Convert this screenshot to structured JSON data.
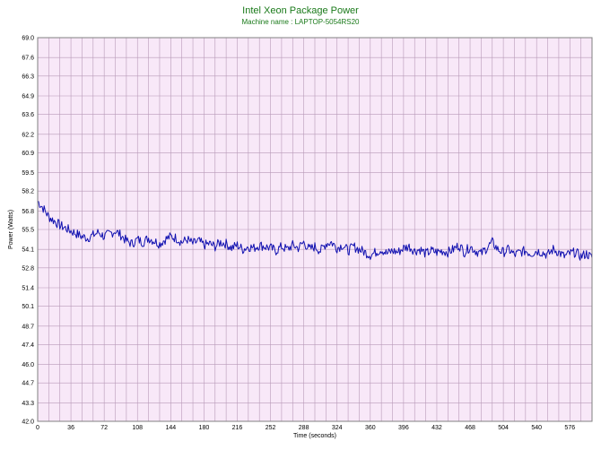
{
  "chart_data": {
    "type": "line",
    "title": "Intel Xeon Package Power",
    "subtitle": "Machine name : LAPTOP-5054RS20",
    "xlabel": "Time (seconds)",
    "ylabel": "Power (Watts)",
    "xlim": [
      0,
      600
    ],
    "ylim": [
      42.0,
      69.0
    ],
    "x_ticks": [
      0,
      36,
      72,
      108,
      144,
      180,
      216,
      252,
      288,
      324,
      360,
      396,
      432,
      468,
      504,
      540,
      576
    ],
    "y_ticks": [
      "42.0",
      "43.3",
      "44.7",
      "46.0",
      "47.4",
      "48.7",
      "50.1",
      "51.4",
      "52.8",
      "54.1",
      "55.5",
      "56.8",
      "58.2",
      "59.5",
      "60.9",
      "62.2",
      "63.6",
      "64.9",
      "66.3",
      "67.6",
      "69.0"
    ],
    "grid": true,
    "colors": {
      "line": "#1010b0",
      "plot_bg": "#f8e8f8",
      "grid": "#b89ab8",
      "title": "#1a7a1a"
    },
    "series": [
      {
        "x": [
          0,
          6,
          12,
          18,
          24,
          30,
          36,
          42,
          48,
          54,
          60,
          66,
          72,
          78,
          84,
          90,
          96,
          102,
          108,
          114,
          120,
          126,
          132,
          138,
          144,
          150,
          156,
          162,
          168,
          174,
          180,
          186,
          192,
          198,
          204,
          210,
          216,
          222,
          228,
          234,
          240,
          246,
          252,
          258,
          264,
          270,
          276,
          282,
          288,
          294,
          300,
          306,
          312,
          318,
          324,
          330,
          336,
          342,
          348,
          354,
          360,
          366,
          372,
          378,
          384,
          390,
          396,
          402,
          408,
          414,
          420,
          426,
          432,
          438,
          444,
          450,
          456,
          462,
          468,
          474,
          480,
          486,
          492,
          498,
          504,
          510,
          516,
          522,
          528,
          534,
          540,
          546,
          552,
          558,
          564,
          570,
          576,
          582,
          588,
          594,
          600
        ],
        "values": [
          57.5,
          57.0,
          56.4,
          56.1,
          55.8,
          55.6,
          55.4,
          55.2,
          55.0,
          54.9,
          55.1,
          55.3,
          55.0,
          55.2,
          55.4,
          55.1,
          54.7,
          54.5,
          54.8,
          54.6,
          54.9,
          54.7,
          54.5,
          54.8,
          55.0,
          54.9,
          54.6,
          54.8,
          54.5,
          54.7,
          54.4,
          54.5,
          54.3,
          54.6,
          54.5,
          54.2,
          54.4,
          54.1,
          54.3,
          54.2,
          54.4,
          54.3,
          54.2,
          54.0,
          54.3,
          54.1,
          54.4,
          54.2,
          54.6,
          54.1,
          54.3,
          54.0,
          54.5,
          54.6,
          54.2,
          54.4,
          54.0,
          54.3,
          54.1,
          53.9,
          53.7,
          53.9,
          54.1,
          53.8,
          54.0,
          53.9,
          54.2,
          54.3,
          54.0,
          54.1,
          53.8,
          54.0,
          53.9,
          54.0,
          53.9,
          54.1,
          54.4,
          53.9,
          54.3,
          54.0,
          53.8,
          54.2,
          54.6,
          54.1,
          53.9,
          54.1,
          53.7,
          53.9,
          54.0,
          53.8,
          54.0,
          53.9,
          53.7,
          54.1,
          53.9,
          53.6,
          53.8,
          53.9,
          53.6,
          53.8,
          53.5
        ]
      }
    ]
  }
}
